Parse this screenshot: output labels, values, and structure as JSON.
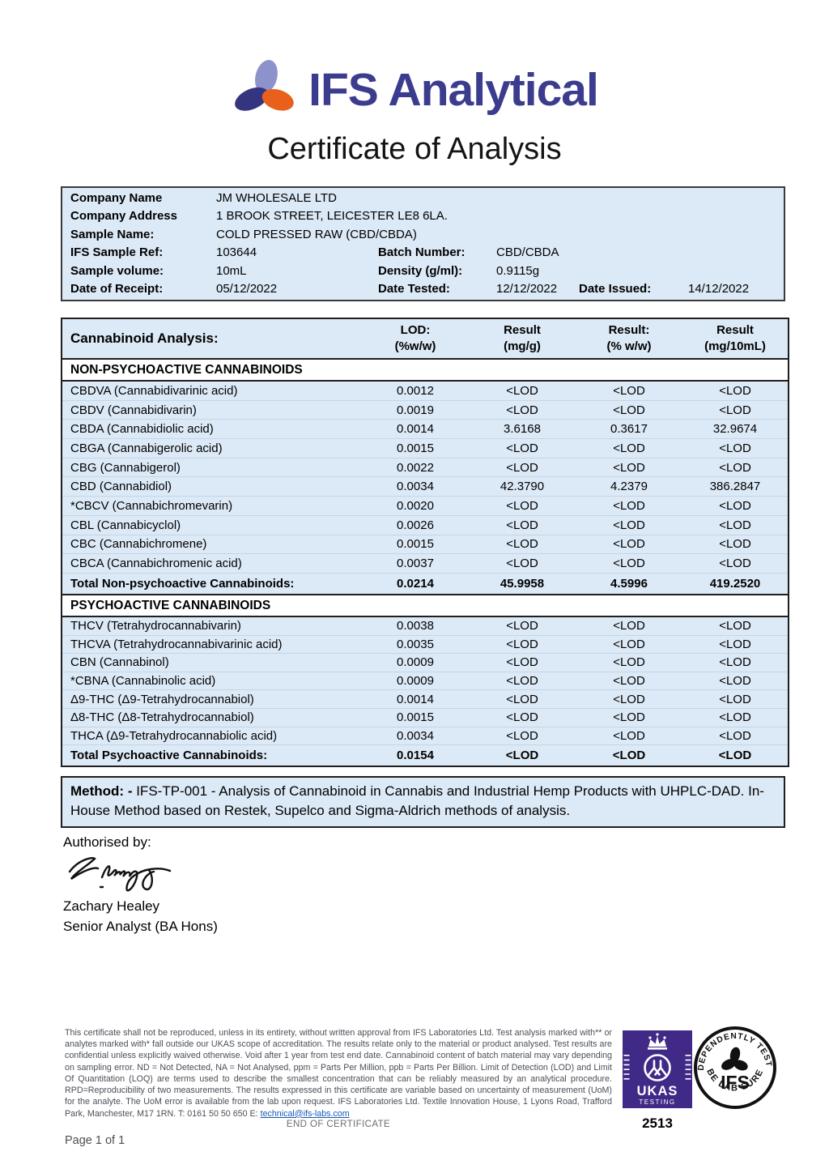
{
  "brand": {
    "name": "IFS Analytical",
    "logo_colors": {
      "lavender": "#8e92cb",
      "navy": "#34357e",
      "orange": "#e9601d",
      "text": "#3b3c8e"
    }
  },
  "title": "Certificate of Analysis",
  "info": {
    "rows": [
      {
        "label": "Company Name",
        "value": "JM WHOLESALE LTD"
      },
      {
        "label": "Company Address",
        "value": "1 BROOK STREET, LEICESTER LE8 6LA."
      },
      {
        "label": "Sample Name:",
        "value": "COLD PRESSED RAW (CBD/CBDA)"
      },
      {
        "label": "IFS Sample Ref:",
        "value": "103644",
        "label2": "Batch Number:",
        "value2": "CBD/CBDA"
      },
      {
        "label": "Sample volume:",
        "value": "10mL",
        "label2": "Density (g/ml):",
        "value2": "0.9115g"
      },
      {
        "label": "Date of Receipt:",
        "value": "05/12/2022",
        "label2": "Date Tested:",
        "value2": "12/12/2022",
        "label3": "Date Issued:",
        "value3": "14/12/2022"
      }
    ]
  },
  "analysis": {
    "table_title": "Cannabinoid Analysis:",
    "columns": [
      {
        "l1": "LOD:",
        "l2": "(%w/w)"
      },
      {
        "l1": "Result",
        "l2": "(mg/g)"
      },
      {
        "l1": "Result:",
        "l2": "(% w/w)"
      },
      {
        "l1": "Result",
        "l2": "(mg/10mL)"
      }
    ],
    "sections": [
      {
        "name": "NON-PSYCHOACTIVE CANNABINOIDS",
        "rows": [
          {
            "analyte": "CBDVA (Cannabidivarinic acid)",
            "lod": "0.0012",
            "mg_g": "<LOD",
            "pct": "<LOD",
            "mg_10ml": "<LOD"
          },
          {
            "analyte": "CBDV (Cannabidivarin)",
            "lod": "0.0019",
            "mg_g": "<LOD",
            "pct": "<LOD",
            "mg_10ml": "<LOD"
          },
          {
            "analyte": "CBDA (Cannabidiolic acid)",
            "lod": "0.0014",
            "mg_g": "3.6168",
            "pct": "0.3617",
            "mg_10ml": "32.9674"
          },
          {
            "analyte": "CBGA (Cannabigerolic acid)",
            "lod": "0.0015",
            "mg_g": "<LOD",
            "pct": "<LOD",
            "mg_10ml": "<LOD"
          },
          {
            "analyte": "CBG (Cannabigerol)",
            "lod": "0.0022",
            "mg_g": "<LOD",
            "pct": "<LOD",
            "mg_10ml": "<LOD"
          },
          {
            "analyte": "CBD (Cannabidiol)",
            "lod": "0.0034",
            "mg_g": "42.3790",
            "pct": "4.2379",
            "mg_10ml": "386.2847"
          },
          {
            "analyte": "*CBCV (Cannabichromevarin)",
            "lod": "0.0020",
            "mg_g": "<LOD",
            "pct": "<LOD",
            "mg_10ml": "<LOD"
          },
          {
            "analyte": "CBL (Cannabicyclol)",
            "lod": "0.0026",
            "mg_g": "<LOD",
            "pct": "<LOD",
            "mg_10ml": "<LOD"
          },
          {
            "analyte": "CBC (Cannabichromene)",
            "lod": "0.0015",
            "mg_g": "<LOD",
            "pct": "<LOD",
            "mg_10ml": "<LOD"
          },
          {
            "analyte": "CBCA (Cannabichromenic acid)",
            "lod": "0.0037",
            "mg_g": "<LOD",
            "pct": "<LOD",
            "mg_10ml": "<LOD"
          }
        ],
        "total": {
          "analyte": "Total Non-psychoactive Cannabinoids:",
          "lod": "0.0214",
          "mg_g": "45.9958",
          "pct": "4.5996",
          "mg_10ml": "419.2520"
        }
      },
      {
        "name": "PSYCHOACTIVE CANNABINOIDS",
        "rows": [
          {
            "analyte": "THCV (Tetrahydrocannabivarin)",
            "lod": "0.0038",
            "mg_g": "<LOD",
            "pct": "<LOD",
            "mg_10ml": "<LOD"
          },
          {
            "analyte": "THCVA (Tetrahydrocannabivarinic acid)",
            "lod": "0.0035",
            "mg_g": "<LOD",
            "pct": "<LOD",
            "mg_10ml": "<LOD"
          },
          {
            "analyte": "CBN (Cannabinol)",
            "lod": "0.0009",
            "mg_g": "<LOD",
            "pct": "<LOD",
            "mg_10ml": "<LOD"
          },
          {
            "analyte": "*CBNA (Cannabinolic acid)",
            "lod": "0.0009",
            "mg_g": "<LOD",
            "pct": "<LOD",
            "mg_10ml": "<LOD"
          },
          {
            "analyte": "Δ9-THC (Δ9-Tetrahydrocannabiol)",
            "lod": "0.0014",
            "mg_g": "<LOD",
            "pct": "<LOD",
            "mg_10ml": "<LOD"
          },
          {
            "analyte": "Δ8-THC (Δ8-Tetrahydrocannabiol)",
            "lod": "0.0015",
            "mg_g": "<LOD",
            "pct": "<LOD",
            "mg_10ml": "<LOD"
          },
          {
            "analyte": "THCA (Δ9-Tetrahydrocannabiolic acid)",
            "lod": "0.0034",
            "mg_g": "<LOD",
            "pct": "<LOD",
            "mg_10ml": "<LOD"
          }
        ],
        "total": {
          "analyte": "Total Psychoactive Cannabinoids:",
          "lod": "0.0154",
          "mg_g": "<LOD",
          "pct": "<LOD",
          "mg_10ml": "<LOD"
        }
      }
    ]
  },
  "method": {
    "label": "Method: -",
    "text": " IFS-TP-001 - Analysis of Cannabinoid in Cannabis and Industrial Hemp Products with UHPLC-DAD. In-House Method based on Restek, Supelco and Sigma-Aldrich methods of analysis."
  },
  "authorisation": {
    "label": "Authorised by:",
    "name": "Zachary Healey",
    "role": "Senior Analyst (BA Hons)"
  },
  "footer": {
    "disclaimer": "This certificate shall not be reproduced, unless in its entirety, without written approval from IFS Laboratories Ltd. Test analysis marked with** or analytes marked with* fall outside our UKAS scope of accreditation.  The results relate only to the material or product analysed. Test results are confidential unless explicitly waived otherwise. Void after 1 year from test end date. Cannabinoid content of batch material may vary depending on sampling error. ND = Not Detected, NA = Not Analysed, ppm = Parts Per Million, ppb = Parts Per Billion. Limit of Detection (LOD) and Limit Of Quantitation (LOQ) are terms used to describe the smallest concentration that can be reliably measured by an analytical procedure. RPD=Reproducibility of two measurements. The results expressed in this certificate are variable based on uncertainty of measurement (UoM) for the analyte. The UoM error is available from the lab upon request. IFS Laboratories Ltd. Textile Innovation House, 1 Lyons Road, Trafford Park, Manchester, M17 1RN. T: 0161 50 50 650 E: ",
    "email": "technical@ifs-labs.com",
    "ukas": {
      "acronym": "UKAS",
      "label": "TESTING",
      "accreditation_number": "2513"
    },
    "ifs_badge": {
      "arc_top": "INDEPENDENTLY TESTED",
      "arc_bottom": "BE LAB SURE",
      "center": "IFS"
    },
    "end_note": "END OF CERTIFICATE",
    "page": "Page 1 of 1"
  }
}
